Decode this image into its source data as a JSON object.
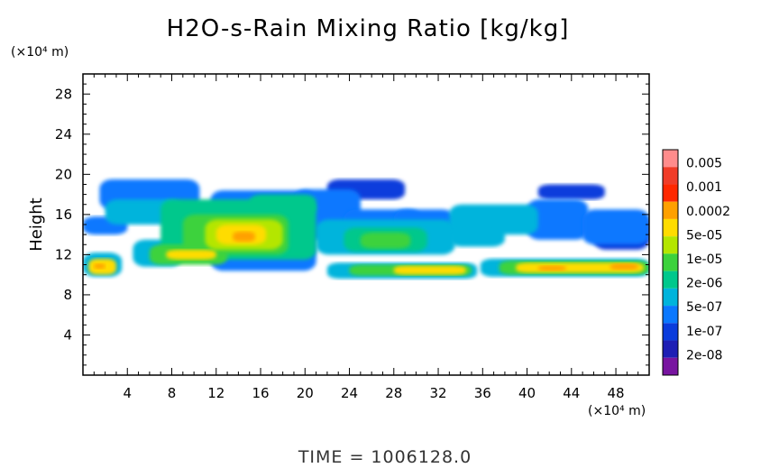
{
  "chart_data": {
    "type": "heatmap",
    "title": "H2O-s-Rain Mixing Ratio [kg/kg]",
    "xlabel": "",
    "ylabel": "Height",
    "x_unit": "(×10⁴ m)",
    "y_unit": "(×10⁴ m)",
    "xlim": [
      0,
      51
    ],
    "ylim": [
      0,
      30
    ],
    "x_ticks": [
      4,
      8,
      12,
      16,
      20,
      24,
      28,
      32,
      36,
      40,
      44,
      48
    ],
    "y_ticks": [
      4,
      8,
      12,
      16,
      20,
      24,
      28
    ],
    "colorbar": {
      "labels": [
        "0.005",
        "0.001",
        "0.0002",
        "5e-05",
        "1e-05",
        "2e-06",
        "5e-07",
        "1e-07",
        "2e-08"
      ],
      "colors": [
        "#ff8c8c",
        "#f03c28",
        "#ff2800",
        "#ffa000",
        "#ffdc00",
        "#b4e600",
        "#3cd23c",
        "#00c88c",
        "#00b4dc",
        "#0a78ff",
        "#0a3cdc",
        "#1e1eb4",
        "#7814a0"
      ]
    },
    "regions": [
      {
        "level": 1,
        "x": [
          11.5,
          21.0
        ],
        "y": [
          10.4,
          18.4
        ]
      },
      {
        "level": 3,
        "x": [
          15.0,
          21.0
        ],
        "y": [
          16.0,
          18.0
        ]
      },
      {
        "level": 1,
        "x": [
          1.5,
          10.5
        ],
        "y": [
          16.5,
          19.5
        ]
      },
      {
        "level": 2,
        "x": [
          2.0,
          9.0
        ],
        "y": [
          15.0,
          17.5
        ]
      },
      {
        "level": 1,
        "x": [
          19.0,
          25.0
        ],
        "y": [
          13.5,
          18.5
        ]
      },
      {
        "level": 1,
        "x": [
          23.5,
          30.5
        ],
        "y": [
          13.0,
          16.5
        ]
      },
      {
        "level": 1,
        "x": [
          28.0,
          33.5
        ],
        "y": [
          13.5,
          16.5
        ]
      },
      {
        "level": 2,
        "x": [
          33.0,
          41.0
        ],
        "y": [
          14.0,
          17.0
        ]
      },
      {
        "level": 1,
        "x": [
          40.0,
          45.5
        ],
        "y": [
          13.5,
          17.5
        ]
      },
      {
        "level": 1,
        "x": [
          45.0,
          51.0
        ],
        "y": [
          13.0,
          16.5
        ]
      },
      {
        "level": 0,
        "x": [
          22.0,
          29.0
        ],
        "y": [
          17.5,
          19.5
        ]
      },
      {
        "level": 0,
        "x": [
          41.0,
          47.0
        ],
        "y": [
          17.5,
          19.0
        ]
      },
      {
        "level": 1,
        "x": [
          0.0,
          4.0
        ],
        "y": [
          14.0,
          15.8
        ]
      },
      {
        "level": 2,
        "x": [
          0.0,
          3.5
        ],
        "y": [
          9.8,
          12.2
        ]
      },
      {
        "level": 2,
        "x": [
          4.5,
          9.0
        ],
        "y": [
          10.8,
          13.5
        ]
      },
      {
        "level": 3,
        "x": [
          7.0,
          21.0
        ],
        "y": [
          11.5,
          17.5
        ]
      },
      {
        "level": 4,
        "x": [
          9.0,
          18.5
        ],
        "y": [
          12.0,
          16.0
        ]
      },
      {
        "level": 5,
        "x": [
          11.0,
          18.0
        ],
        "y": [
          12.5,
          15.5
        ]
      },
      {
        "level": 6,
        "x": [
          12.0,
          16.5
        ],
        "y": [
          13.0,
          15.0
        ]
      },
      {
        "level": 7,
        "x": [
          13.5,
          15.5
        ],
        "y": [
          13.3,
          14.3
        ]
      },
      {
        "level": 4,
        "x": [
          6.0,
          13.0
        ],
        "y": [
          11.0,
          13.0
        ]
      },
      {
        "level": 6,
        "x": [
          7.5,
          12.0
        ],
        "y": [
          11.5,
          12.5
        ]
      },
      {
        "level": 6,
        "x": [
          0.5,
          3.0
        ],
        "y": [
          10.0,
          11.6
        ]
      },
      {
        "level": 7,
        "x": [
          1.0,
          2.0
        ],
        "y": [
          10.6,
          11.1
        ]
      },
      {
        "level": 2,
        "x": [
          21.0,
          33.5
        ],
        "y": [
          12.0,
          15.5
        ]
      },
      {
        "level": 3,
        "x": [
          23.5,
          31.0
        ],
        "y": [
          12.3,
          14.7
        ]
      },
      {
        "level": 4,
        "x": [
          25.0,
          29.5
        ],
        "y": [
          12.6,
          14.2
        ]
      },
      {
        "level": 2,
        "x": [
          33.0,
          38.0
        ],
        "y": [
          12.8,
          15.0
        ]
      },
      {
        "level": 0,
        "x": [
          46.0,
          51.0
        ],
        "y": [
          12.5,
          16.0
        ]
      },
      {
        "level": 2,
        "x": [
          22.0,
          35.5
        ],
        "y": [
          9.6,
          11.2
        ]
      },
      {
        "level": 4,
        "x": [
          24.0,
          35.0
        ],
        "y": [
          9.9,
          11.0
        ]
      },
      {
        "level": 6,
        "x": [
          28.0,
          34.5
        ],
        "y": [
          10.0,
          10.9
        ]
      },
      {
        "level": 2,
        "x": [
          35.8,
          51.0
        ],
        "y": [
          9.8,
          11.6
        ]
      },
      {
        "level": 4,
        "x": [
          37.5,
          51.0
        ],
        "y": [
          10.0,
          11.4
        ]
      },
      {
        "level": 6,
        "x": [
          39.0,
          50.5
        ],
        "y": [
          10.2,
          11.2
        ]
      },
      {
        "level": 7,
        "x": [
          41.0,
          43.5
        ],
        "y": [
          10.4,
          10.9
        ]
      },
      {
        "level": 7,
        "x": [
          47.5,
          50.0
        ],
        "y": [
          10.5,
          11.1
        ]
      }
    ]
  },
  "footer_text": "TIME = 1006128.0"
}
